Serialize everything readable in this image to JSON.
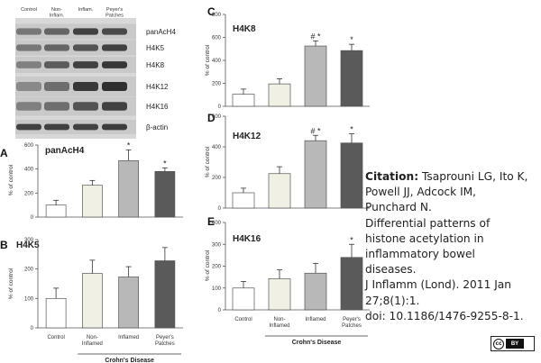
{
  "blot": {
    "lane_labels": [
      "Control",
      "Non-\nInflam.",
      "Inflam.",
      "Peyer's\nPatches"
    ],
    "row_labels": [
      "panAcH4",
      "H4K5",
      "H4K8",
      "H4K12",
      "H4K16",
      "β-actin"
    ]
  },
  "group_label": "Crohn's Disease",
  "categories": [
    "Control",
    "Non-\nInflamed",
    "Inflamed",
    "Peyer's\nPatches"
  ],
  "bar_colors": [
    "#ffffff",
    "#f0f0e4",
    "#b8b8b8",
    "#5a5a5a"
  ],
  "chart_data": [
    {
      "panel": "A",
      "title": "panAcH4",
      "type": "bar",
      "ylabel": "% of control",
      "ylim": [
        0,
        600
      ],
      "yticks": [
        0,
        200,
        400,
        600
      ],
      "values": [
        100,
        265,
        470,
        380
      ],
      "errors": [
        40,
        40,
        90,
        30
      ],
      "annotations": [
        "",
        "",
        "*",
        "*"
      ]
    },
    {
      "panel": "B",
      "title": "H4K5",
      "type": "bar",
      "ylabel": "% of control",
      "ylim": [
        0,
        300
      ],
      "yticks": [
        0,
        100,
        200,
        300
      ],
      "values": [
        100,
        185,
        173,
        228
      ],
      "errors": [
        35,
        45,
        35,
        45
      ],
      "annotations": [
        "",
        "",
        "",
        ""
      ],
      "show_categories": true
    },
    {
      "panel": "C",
      "title": "H4K8",
      "type": "bar",
      "ylabel": "% of control",
      "ylim": [
        0,
        800
      ],
      "yticks": [
        0,
        200,
        400,
        600,
        800
      ],
      "values": [
        105,
        195,
        525,
        485
      ],
      "errors": [
        45,
        45,
        45,
        55
      ],
      "annotations": [
        "",
        "",
        "# *",
        "*"
      ]
    },
    {
      "panel": "D",
      "title": "H4K12",
      "type": "bar",
      "ylabel": "% of control",
      "ylim": [
        0,
        600
      ],
      "yticks": [
        0,
        200,
        400,
        600
      ],
      "values": [
        100,
        225,
        440,
        425
      ],
      "errors": [
        30,
        45,
        35,
        60
      ],
      "annotations": [
        "",
        "",
        "# *",
        "*"
      ]
    },
    {
      "panel": "E",
      "title": "H4K16",
      "type": "bar",
      "ylabel": "% of control",
      "ylim": [
        0,
        400
      ],
      "yticks": [
        0,
        100,
        200,
        300,
        400
      ],
      "values": [
        100,
        143,
        168,
        240
      ],
      "errors": [
        30,
        40,
        45,
        60
      ],
      "annotations": [
        "",
        "",
        "",
        "*"
      ],
      "show_categories": true
    }
  ],
  "citation": {
    "label": "Citation:",
    "first_line": " Tsaprouni LG, Ito K,",
    "lines": [
      "Powell JJ, Adcock IM,",
      "Punchard N.",
      "Differential patterns of",
      "histone acetylation in",
      "inflammatory bowel",
      "diseases.",
      "J Inflamm (Lond). 2011 Jan",
      "27;8(1):1.",
      "doi: 10.1186/1476-9255-8-1."
    ]
  },
  "license_badge": {
    "cc": "cc",
    "by": "BY"
  }
}
